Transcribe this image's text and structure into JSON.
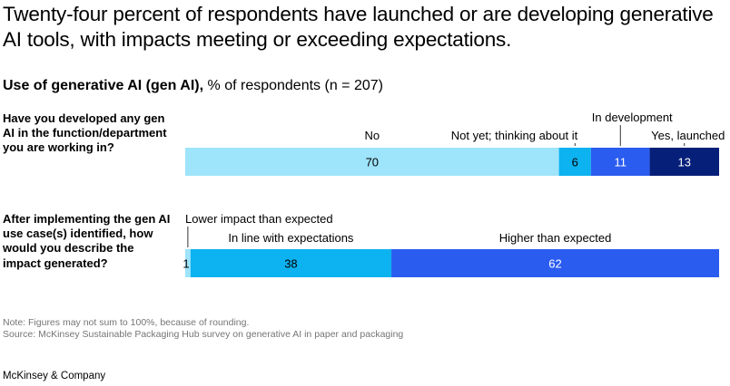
{
  "title": "Twenty-four percent of respondents have launched or are developing generative AI tools, with impacts meeting or exceeding expectations.",
  "subtitle_bold": "Use of generative AI (gen AI),",
  "subtitle_rest": " % of respondents (n = 207)",
  "note": "Note: Figures may not sum to 100%, because of rounding.",
  "source": "Source: McKinsey Sustainable Packaging Hub survey on generative AI in paper and packaging",
  "brand": "McKinsey & Company",
  "chart_data": {
    "type": "bar",
    "orientation": "horizontal-stacked",
    "scale_max": 100,
    "rows": [
      {
        "question": "Have you developed any gen AI in the function/department you are working in?",
        "segments": [
          {
            "label": "No",
            "value": 70,
            "color": "#9ee4fb"
          },
          {
            "label": "Not yet; thinking about it",
            "value": 6,
            "color": "#0db2f0"
          },
          {
            "label": "In development",
            "value": 11,
            "color": "#2b5cf0"
          },
          {
            "label": "Yes, launched",
            "value": 13,
            "color": "#061f79"
          }
        ]
      },
      {
        "question": "After implementing the gen AI use case(s) identified, how would you describe the impact generated?",
        "segments": [
          {
            "label": "Lower impact than expected",
            "value": 1,
            "color": "#9ee4fb"
          },
          {
            "label": "In line with expectations",
            "value": 38,
            "color": "#0db2f0"
          },
          {
            "label": "Higher than expected",
            "value": 62,
            "color": "#2b5cf0"
          }
        ]
      }
    ]
  }
}
